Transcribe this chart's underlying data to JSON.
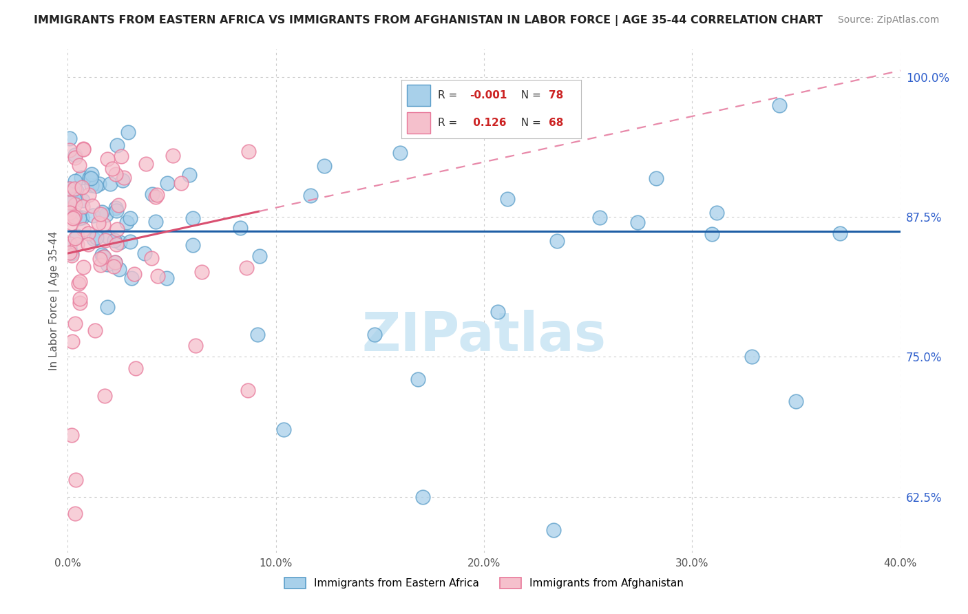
{
  "title": "IMMIGRANTS FROM EASTERN AFRICA VS IMMIGRANTS FROM AFGHANISTAN IN LABOR FORCE | AGE 35-44 CORRELATION CHART",
  "source": "Source: ZipAtlas.com",
  "ylabel_label": "In Labor Force | Age 35-44",
  "yticks_pct": [
    100.0,
    87.5,
    75.0,
    62.5
  ],
  "ytick_labels": [
    "100.0%",
    "87.5%",
    "75.0%",
    "62.5%"
  ],
  "xlim": [
    0.0,
    0.4
  ],
  "ylim": [
    0.575,
    1.025
  ],
  "legend_entry1_R": "-0.001",
  "legend_entry1_N": "78",
  "legend_entry2_R": "0.126",
  "legend_entry2_N": "68",
  "color_blue_fill": "#a8d0ea",
  "color_blue_edge": "#5b9ec9",
  "color_blue_line": "#1f5fa6",
  "color_pink_fill": "#f5c0cc",
  "color_pink_edge": "#e8789a",
  "color_pink_line": "#d94f70",
  "color_pink_dash": "#e88aaa",
  "watermark_color": "#d0e8f5",
  "background_color": "#ffffff",
  "grid_color": "#cccccc",
  "title_color": "#222222",
  "source_color": "#888888",
  "axis_color": "#555555",
  "right_tick_color": "#3060cc"
}
